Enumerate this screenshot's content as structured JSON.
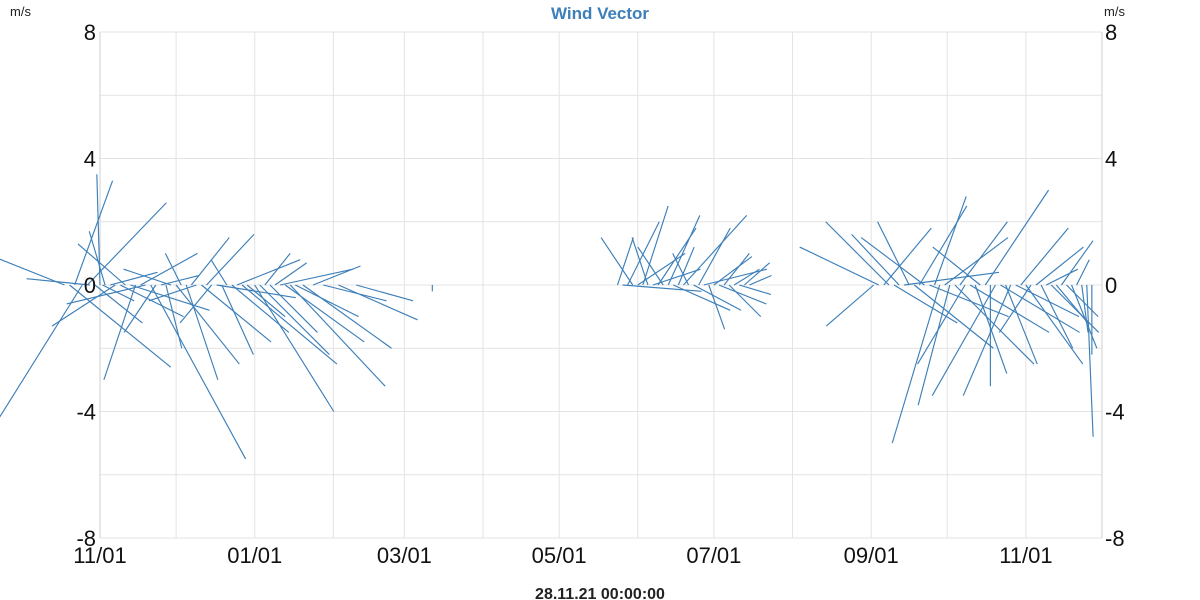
{
  "chart_data": {
    "type": "line",
    "title": "Wind Vector",
    "y_unit_left": "m/s",
    "y_unit_right": "m/s",
    "footer": "28.11.21 00:00:00",
    "ylim": [
      -8,
      8
    ],
    "y_ticks": [
      8,
      4,
      0,
      -4,
      -8
    ],
    "y_tick_labels": [
      "8",
      "4",
      "0",
      "-4",
      "-8"
    ],
    "x_range": [
      "2020-11-01",
      "2021-12-01"
    ],
    "x_ticks": [
      "2020-11-01",
      "2021-01-01",
      "2021-03-01",
      "2021-05-01",
      "2021-07-01",
      "2021-09-01",
      "2021-11-01"
    ],
    "x_tick_labels": [
      "11/01",
      "01/01",
      "03/01",
      "05/01",
      "07/01",
      "09/01",
      "11/01"
    ],
    "grid": true,
    "series_color": "#3d7fb8",
    "vectors": [
      {
        "x": "2020-10-18",
        "u": -3.5,
        "v": 1.4
      },
      {
        "x": "2020-10-20",
        "u": 3.2,
        "v": -2.6
      },
      {
        "x": "2020-10-22",
        "u": 1.2,
        "v": 3.3
      },
      {
        "x": "2020-10-25",
        "u": -3.0,
        "v": -4.8
      },
      {
        "x": "2020-10-27",
        "u": 2.5,
        "v": 2.6
      },
      {
        "x": "2020-10-28",
        "u": -2.0,
        "v": 0.2
      },
      {
        "x": "2020-10-30",
        "u": 1.5,
        "v": -1.2
      },
      {
        "x": "2020-11-01",
        "u": -0.1,
        "v": 3.5
      },
      {
        "x": "2020-11-02",
        "u": 1.0,
        "v": -0.5
      },
      {
        "x": "2020-11-03",
        "u": -0.5,
        "v": 1.7
      },
      {
        "x": "2020-11-05",
        "u": 1.5,
        "v": 0.4
      },
      {
        "x": "2020-11-07",
        "u": -2.0,
        "v": -1.3
      },
      {
        "x": "2020-11-09",
        "u": 2.0,
        "v": -1.0
      },
      {
        "x": "2020-11-11",
        "u": -1.5,
        "v": 1.3
      },
      {
        "x": "2020-11-13",
        "u": 2.5,
        "v": -0.8
      },
      {
        "x": "2020-11-15",
        "u": -1.0,
        "v": -3.0
      },
      {
        "x": "2020-11-17",
        "u": 1.8,
        "v": 1.0
      },
      {
        "x": "2020-11-19",
        "u": -2.5,
        "v": -0.6
      },
      {
        "x": "2020-11-21",
        "u": 3.0,
        "v": -5.5
      },
      {
        "x": "2020-11-23",
        "u": -1.0,
        "v": -1.5
      },
      {
        "x": "2020-11-25",
        "u": 1.2,
        "v": 0.3
      },
      {
        "x": "2020-11-27",
        "u": 0.5,
        "v": -2.0
      },
      {
        "x": "2020-11-29",
        "u": -1.5,
        "v": 0.5
      },
      {
        "x": "2020-12-01",
        "u": 2.0,
        "v": -2.5
      },
      {
        "x": "2020-12-03",
        "u": -0.5,
        "v": 1.0
      },
      {
        "x": "2020-12-05",
        "u": 1.0,
        "v": -3.0
      },
      {
        "x": "2020-12-07",
        "u": 1.2,
        "v": 1.5
      },
      {
        "x": "2020-12-09",
        "u": -1.5,
        "v": -0.5
      },
      {
        "x": "2020-12-11",
        "u": 2.2,
        "v": -1.8
      },
      {
        "x": "2020-12-13",
        "u": 1.5,
        "v": 1.6
      },
      {
        "x": "2020-12-15",
        "u": -1.0,
        "v": -1.2
      },
      {
        "x": "2020-12-17",
        "u": 2.5,
        "v": -0.4
      },
      {
        "x": "2020-12-19",
        "u": 1.0,
        "v": -2.2
      },
      {
        "x": "2020-12-21",
        "u": -0.5,
        "v": 0.8
      },
      {
        "x": "2020-12-23",
        "u": 1.8,
        "v": -1.5
      },
      {
        "x": "2020-12-25",
        "u": 2.0,
        "v": 0.8
      },
      {
        "x": "2020-12-27",
        "u": 3.0,
        "v": -2.5
      },
      {
        "x": "2020-12-29",
        "u": 1.2,
        "v": -1.0
      },
      {
        "x": "2021-01-01",
        "u": 2.5,
        "v": -4.0
      },
      {
        "x": "2021-01-03",
        "u": 2.2,
        "v": -2.2
      },
      {
        "x": "2021-01-05",
        "u": 0.8,
        "v": 1.0
      },
      {
        "x": "2021-01-07",
        "u": 1.5,
        "v": -1.5
      },
      {
        "x": "2021-01-09",
        "u": 1.0,
        "v": 0.7
      },
      {
        "x": "2021-01-11",
        "u": 2.3,
        "v": 0.5
      },
      {
        "x": "2021-01-13",
        "u": 2.5,
        "v": -1.8
      },
      {
        "x": "2021-01-15",
        "u": 3.0,
        "v": -3.2
      },
      {
        "x": "2021-01-17",
        "u": 2.0,
        "v": -1.0
      },
      {
        "x": "2021-01-20",
        "u": 2.8,
        "v": -2.0
      },
      {
        "x": "2021-01-24",
        "u": 1.5,
        "v": 0.6
      },
      {
        "x": "2021-01-28",
        "u": 2.0,
        "v": -0.5
      },
      {
        "x": "2021-02-03",
        "u": 2.5,
        "v": -1.1
      },
      {
        "x": "2021-02-10",
        "u": 1.8,
        "v": -0.5
      },
      {
        "x": "2021-03-12",
        "u": 0.0,
        "v": -0.2
      },
      {
        "x": "2021-05-24",
        "u": 0.5,
        "v": 1.5
      },
      {
        "x": "2021-05-26",
        "u": 2.5,
        "v": -0.2
      },
      {
        "x": "2021-05-28",
        "u": 1.0,
        "v": 2.0
      },
      {
        "x": "2021-05-30",
        "u": -1.0,
        "v": 1.5
      },
      {
        "x": "2021-06-01",
        "u": 1.5,
        "v": 1.0
      },
      {
        "x": "2021-06-03",
        "u": 0.8,
        "v": 2.5
      },
      {
        "x": "2021-06-05",
        "u": -0.5,
        "v": 1.5
      },
      {
        "x": "2021-06-07",
        "u": 1.5,
        "v": 0.5
      },
      {
        "x": "2021-06-09",
        "u": 1.2,
        "v": 1.8
      },
      {
        "x": "2021-06-11",
        "u": -0.8,
        "v": 1.2
      },
      {
        "x": "2021-06-13",
        "u": 1.0,
        "v": 2.2
      },
      {
        "x": "2021-06-15",
        "u": 1.8,
        "v": -0.8
      },
      {
        "x": "2021-06-17",
        "u": 0.5,
        "v": 1.2
      },
      {
        "x": "2021-06-19",
        "u": 2.0,
        "v": 2.2
      },
      {
        "x": "2021-06-21",
        "u": -0.5,
        "v": 1.0
      },
      {
        "x": "2021-06-23",
        "u": 1.5,
        "v": -0.8
      },
      {
        "x": "2021-06-25",
        "u": 1.0,
        "v": 1.8
      },
      {
        "x": "2021-06-27",
        "u": 2.0,
        "v": 0.5
      },
      {
        "x": "2021-06-29",
        "u": 0.5,
        "v": -1.4
      },
      {
        "x": "2021-07-01",
        "u": 1.2,
        "v": 0.9
      },
      {
        "x": "2021-07-03",
        "u": 1.5,
        "v": -0.6
      },
      {
        "x": "2021-07-05",
        "u": 0.8,
        "v": 1.0
      },
      {
        "x": "2021-07-07",
        "u": 1.0,
        "v": -1.0
      },
      {
        "x": "2021-07-09",
        "u": 0.8,
        "v": 0.5
      },
      {
        "x": "2021-07-11",
        "u": 1.0,
        "v": -0.3
      },
      {
        "x": "2021-07-13",
        "u": 0.8,
        "v": 0.7
      },
      {
        "x": "2021-07-15",
        "u": 0.7,
        "v": 0.3
      },
      {
        "x": "2021-09-02",
        "u": -1.5,
        "v": -1.3
      },
      {
        "x": "2021-09-04",
        "u": -2.5,
        "v": 1.2
      },
      {
        "x": "2021-09-06",
        "u": 1.5,
        "v": 1.8
      },
      {
        "x": "2021-09-08",
        "u": -2.0,
        "v": 2.0
      },
      {
        "x": "2021-09-10",
        "u": 2.0,
        "v": -1.2
      },
      {
        "x": "2021-09-12",
        "u": -1.5,
        "v": 1.6
      },
      {
        "x": "2021-09-14",
        "u": 3.0,
        "v": 0.4
      },
      {
        "x": "2021-09-16",
        "u": -1.0,
        "v": 2.0
      },
      {
        "x": "2021-09-18",
        "u": 2.5,
        "v": -2.0
      },
      {
        "x": "2021-09-20",
        "u": 1.5,
        "v": 2.5
      },
      {
        "x": "2021-09-22",
        "u": -2.0,
        "v": 1.5
      },
      {
        "x": "2021-09-24",
        "u": 2.5,
        "v": -1.0
      },
      {
        "x": "2021-09-26",
        "u": 1.0,
        "v": 2.8
      },
      {
        "x": "2021-09-28",
        "u": -1.5,
        "v": -5.0
      },
      {
        "x": "2021-09-30",
        "u": 2.0,
        "v": 1.5
      },
      {
        "x": "2021-10-02",
        "u": -1.0,
        "v": -3.8
      },
      {
        "x": "2021-10-04",
        "u": 2.5,
        "v": -2.5
      },
      {
        "x": "2021-10-06",
        "u": 1.5,
        "v": 2.0
      },
      {
        "x": "2021-10-08",
        "u": -1.5,
        "v": -2.5
      },
      {
        "x": "2021-10-10",
        "u": 2.5,
        "v": -1.5
      },
      {
        "x": "2021-10-12",
        "u": 1.0,
        "v": -2.8
      },
      {
        "x": "2021-10-14",
        "u": -1.5,
        "v": 1.2
      },
      {
        "x": "2021-10-16",
        "u": 2.0,
        "v": 3.0
      },
      {
        "x": "2021-10-18",
        "u": 0.0,
        "v": -3.2
      },
      {
        "x": "2021-10-20",
        "u": -2.0,
        "v": -3.5
      },
      {
        "x": "2021-10-22",
        "u": 2.5,
        "v": -1.5
      },
      {
        "x": "2021-10-24",
        "u": 1.0,
        "v": -2.5
      },
      {
        "x": "2021-10-26",
        "u": -1.5,
        "v": -3.5
      },
      {
        "x": "2021-10-28",
        "u": 2.0,
        "v": -1.0
      },
      {
        "x": "2021-10-30",
        "u": 1.5,
        "v": 1.8
      },
      {
        "x": "2021-11-01",
        "u": 1.8,
        "v": -2.5
      },
      {
        "x": "2021-11-03",
        "u": -1.0,
        "v": -1.5
      },
      {
        "x": "2021-11-05",
        "u": 1.5,
        "v": 1.2
      },
      {
        "x": "2021-11-07",
        "u": 1.0,
        "v": -2.0
      },
      {
        "x": "2021-11-09",
        "u": 1.0,
        "v": 0.5
      },
      {
        "x": "2021-11-11",
        "u": 1.5,
        "v": -1.5
      },
      {
        "x": "2021-11-13",
        "u": 1.0,
        "v": -1.2
      },
      {
        "x": "2021-11-15",
        "u": 1.0,
        "v": 1.4
      },
      {
        "x": "2021-11-17",
        "u": 1.0,
        "v": -1.0
      },
      {
        "x": "2021-11-19",
        "u": 0.8,
        "v": -2.0
      },
      {
        "x": "2021-11-21",
        "u": 0.4,
        "v": 0.8
      },
      {
        "x": "2021-11-23",
        "u": 0.2,
        "v": -1.5
      },
      {
        "x": "2021-11-25",
        "u": 0.2,
        "v": -4.8
      },
      {
        "x": "2021-11-27",
        "u": 0.0,
        "v": -2.2
      }
    ]
  }
}
